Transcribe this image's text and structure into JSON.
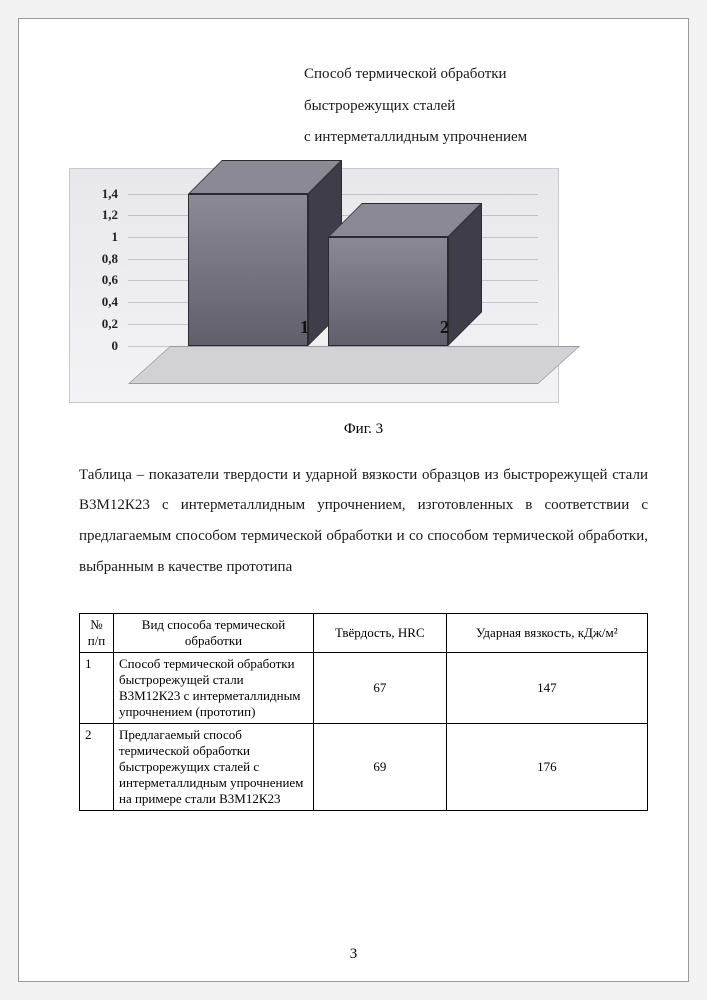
{
  "title": {
    "line1": "Способ термической обработки",
    "line2": "быстрорежущих сталей",
    "line3": "с интерметаллидным упрочнением"
  },
  "chart": {
    "type": "bar-3d",
    "ylim": [
      0,
      1.4
    ],
    "ytick_step": 0.2,
    "yticks": [
      "0",
      "0,2",
      "0,4",
      "0,6",
      "0,8",
      "1",
      "1,2",
      "1,4"
    ],
    "bars": [
      {
        "label": "1",
        "value": 1.4,
        "front_color": "#615f6b",
        "top_color": "#8b8994",
        "side_color": "#3f3e48"
      },
      {
        "label": "2",
        "value": 1.0,
        "front_color": "#615f6b",
        "top_color": "#8b8994",
        "side_color": "#3f3e48"
      }
    ],
    "background_color": "#ededf1",
    "floor_color": "#d2d2d6",
    "grid_color": "#9a9aa2",
    "font_size": 13,
    "caption": "Фиг. 3"
  },
  "paragraph": "Таблица – показатели твердости и ударной вязкости образцов из быстрорежущей стали В3М12К23 с интерметаллидным упрочнением, изготовленных в соответствии с предлагаемым способом термической обработки и со способом термической обработки, выбранным в качестве прототипа",
  "table": {
    "columns": [
      {
        "key": "n",
        "header": "№ п/п"
      },
      {
        "key": "method",
        "header": "Вид способа термической обработки"
      },
      {
        "key": "hrc",
        "header": "Твёрдость, HRC"
      },
      {
        "key": "impact",
        "header": "Ударная вязкость, кДж/м²"
      }
    ],
    "rows": [
      {
        "n": "1",
        "method": "Способ термической обработки быстрорежущей стали В3М12К23 с интерметаллидным упрочнением (прототип)",
        "hrc": "67",
        "impact": "147"
      },
      {
        "n": "2",
        "method": "Предлагаемый способ термической обработки быстрорежущих сталей с интерметаллидным упрочнением на примере стали В3М12К23",
        "hrc": "69",
        "impact": "176"
      }
    ]
  },
  "page_number": "3"
}
